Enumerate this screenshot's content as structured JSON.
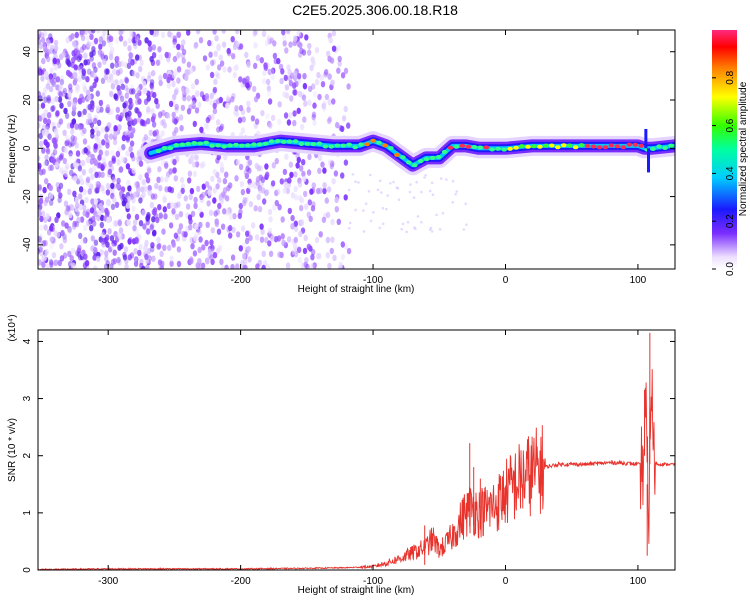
{
  "title": "C2E5.2025.306.00.18.R18",
  "chart_data": [
    {
      "type": "heatmap",
      "xlabel": "Height of straight line (km)",
      "ylabel": "Frequency (Hz)",
      "xlim": [
        -353,
        128
      ],
      "ylim": [
        -50,
        49
      ],
      "xticks": [
        -300,
        -200,
        -100,
        0,
        100
      ],
      "yticks": [
        -40,
        -20,
        0,
        20,
        40
      ],
      "colorbar": {
        "label": "Normalized spectral amplitude",
        "range": [
          0,
          1
        ],
        "ticks": [
          "0.0",
          "0.2",
          "0.4",
          "0.6",
          "0.8"
        ]
      },
      "ridge": {
        "x": [
          -268,
          -250,
          -230,
          -210,
          -190,
          -170,
          -150,
          -130,
          -110,
          -100,
          -90,
          -80,
          -70,
          -60,
          -50,
          -40,
          -30,
          -20,
          -10,
          0,
          20,
          40,
          60,
          80,
          100,
          105,
          110,
          128
        ],
        "y": [
          -2,
          1,
          2,
          1,
          1,
          3,
          2,
          1,
          1,
          3,
          1,
          -3,
          -7,
          -4,
          -4,
          1,
          1,
          0,
          0,
          0,
          1,
          1,
          1,
          1,
          1,
          0,
          0,
          1
        ]
      }
    },
    {
      "type": "line",
      "xlabel": "Height of straight line (km)",
      "ylabel": "SNR (10 * v/v)",
      "y_multiplier": "(x10⁴)",
      "xlim": [
        -353,
        128
      ],
      "ylim": [
        0,
        4.2
      ],
      "xticks": [
        -300,
        -200,
        -100,
        0,
        100
      ],
      "yticks": [
        0,
        1,
        2,
        3,
        4
      ],
      "series": [
        {
          "color": "#e8322c",
          "x": [
            -353,
            -300,
            -250,
            -200,
            -150,
            -120,
            -100,
            -90,
            -80,
            -70,
            -60,
            -55,
            -50,
            -45,
            -40,
            -35,
            -30,
            -25,
            -20,
            -15,
            -10,
            -5,
            0,
            10,
            20,
            30,
            40,
            60,
            80,
            90,
            100,
            104,
            106,
            108,
            110,
            112,
            115,
            128
          ],
          "y": [
            0.01,
            0.02,
            0.02,
            0.02,
            0.03,
            0.04,
            0.06,
            0.12,
            0.2,
            0.3,
            0.4,
            0.55,
            0.35,
            0.45,
            0.6,
            0.8,
            1.0,
            1.1,
            1.0,
            1.05,
            1.1,
            1.2,
            1.35,
            1.55,
            1.7,
            1.8,
            1.85,
            1.85,
            1.88,
            1.87,
            1.85,
            1.8,
            2.8,
            0.8,
            3.5,
            1.9,
            1.85,
            1.85
          ],
          "spikes": [
            {
              "x": -61,
              "y": 0.78
            },
            {
              "x": -27,
              "y": 2.22
            },
            {
              "x": -24,
              "y": 1.8
            },
            {
              "x": -19,
              "y": 1.6
            },
            {
              "x": 105,
              "y": 3.15
            },
            {
              "x": 107,
              "y": 0.25
            },
            {
              "x": 109,
              "y": 4.15
            }
          ]
        }
      ]
    }
  ]
}
